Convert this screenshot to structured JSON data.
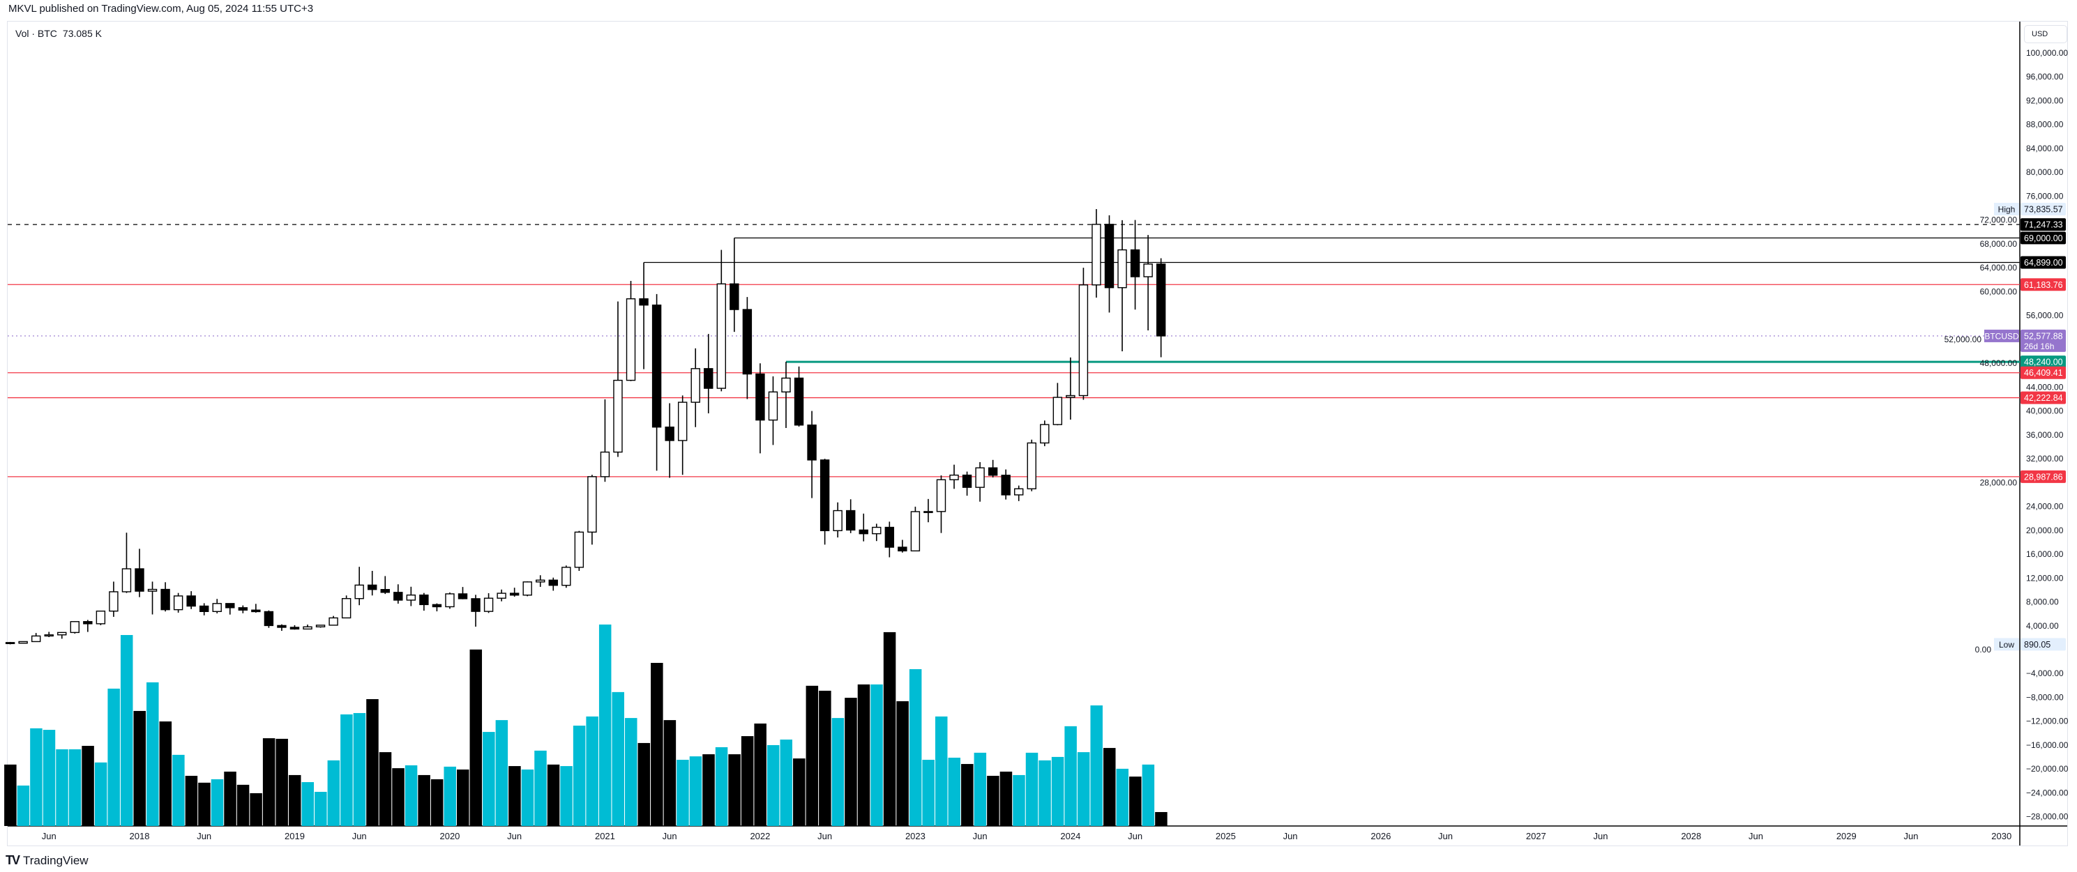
{
  "header": {
    "published": "MKVL published on TradingView.com, Aug 05, 2024 11:55 UTC+3"
  },
  "legend": {
    "label": "Vol · BTC",
    "value": "73.085 K"
  },
  "price_axis": {
    "currency": "USD"
  },
  "footer": {
    "brand": "TradingView"
  },
  "chart_data": {
    "type": "candlestick",
    "symbol": "BTCUSD",
    "interval": "monthly",
    "colors": {
      "up_body": "#ffffff",
      "down_body": "#000000",
      "wick": "#000000",
      "volume_cyan": "#00bcd4",
      "volume_black": "#000000"
    },
    "y_scale": "linear",
    "y_ticks": [
      100000,
      96000,
      92000,
      88000,
      84000,
      80000,
      76000,
      72000,
      68000,
      64000,
      60000,
      56000,
      52000,
      48000,
      44000,
      40000,
      36000,
      32000,
      28000,
      24000,
      20000,
      16000,
      12000,
      8000,
      4000,
      0,
      -4000,
      -8000,
      -12000,
      -16000,
      -20000,
      -24000,
      -28000
    ],
    "y_tick_labels": [
      "100,000.00",
      "96,000.00",
      "92,000.00",
      "88,000.00",
      "84,000.00",
      "80,000.00",
      "76,000.00",
      "72,000.00",
      "68,000.00",
      "64,000.00",
      "60,000.00",
      "56,000.00",
      "52,000.00",
      "48,000.00",
      "44,000.00",
      "40,000.00",
      "36,000.00",
      "32,000.00",
      "28,000.00",
      "24,000.00",
      "20,000.00",
      "16,000.00",
      "12,000.00",
      "8,000.00",
      "4,000.00",
      "0.00",
      "−4,000.00",
      "−8,000.00",
      "−12,000.00",
      "−16,000.00",
      "−20,000.00",
      "−24,000.00",
      "−28,000.00"
    ],
    "x_ticks": [
      {
        "label": "Jun",
        "date": "2017-06"
      },
      {
        "label": "2018",
        "date": "2018-01"
      },
      {
        "label": "Jun",
        "date": "2018-06"
      },
      {
        "label": "2019",
        "date": "2019-01"
      },
      {
        "label": "Jun",
        "date": "2019-06"
      },
      {
        "label": "2020",
        "date": "2020-01"
      },
      {
        "label": "Jun",
        "date": "2020-06"
      },
      {
        "label": "2021",
        "date": "2021-01"
      },
      {
        "label": "Jun",
        "date": "2021-06"
      },
      {
        "label": "2022",
        "date": "2022-01"
      },
      {
        "label": "Jun",
        "date": "2022-06"
      },
      {
        "label": "2023",
        "date": "2023-01"
      },
      {
        "label": "Jun",
        "date": "2023-06"
      },
      {
        "label": "2024",
        "date": "2024-01"
      },
      {
        "label": "Jun",
        "date": "2024-06"
      },
      {
        "label": "2025",
        "date": "2025-01"
      },
      {
        "label": "Jun",
        "date": "2025-06"
      },
      {
        "label": "2026",
        "date": "2026-01"
      },
      {
        "label": "Jun",
        "date": "2026-06"
      },
      {
        "label": "2027",
        "date": "2027-01"
      },
      {
        "label": "Jun",
        "date": "2027-06"
      },
      {
        "label": "2028",
        "date": "2028-01"
      },
      {
        "label": "Jun",
        "date": "2028-06"
      },
      {
        "label": "2029",
        "date": "2029-01"
      },
      {
        "label": "Jun",
        "date": "2029-06"
      },
      {
        "label": "2030",
        "date": "2030-01"
      }
    ],
    "candles": [
      [
        "2017-03",
        1190,
        1290,
        890.05,
        1080
      ],
      [
        "2017-04",
        1080,
        1350,
        1060,
        1350
      ],
      [
        "2017-05",
        1350,
        2790,
        1350,
        2290
      ],
      [
        "2017-06",
        2290,
        2980,
        2100,
        2480
      ],
      [
        "2017-07",
        2480,
        2930,
        1830,
        2875
      ],
      [
        "2017-08",
        2875,
        4750,
        2690,
        4700
      ],
      [
        "2017-09",
        4700,
        4980,
        2970,
        4340
      ],
      [
        "2017-10",
        4340,
        6470,
        4100,
        6460
      ],
      [
        "2017-11",
        6460,
        11400,
        5500,
        9700
      ],
      [
        "2017-12",
        9700,
        19600,
        9500,
        13550
      ],
      [
        "2018-01",
        13550,
        16900,
        8800,
        9800
      ],
      [
        "2018-02",
        9800,
        11400,
        5900,
        10100
      ],
      [
        "2018-03",
        10100,
        11300,
        6400,
        6700
      ],
      [
        "2018-04",
        6700,
        9500,
        6200,
        9000
      ],
      [
        "2018-05",
        9000,
        9800,
        6800,
        7300
      ],
      [
        "2018-06",
        7300,
        7780,
        5750,
        6390
      ],
      [
        "2018-07",
        6390,
        8500,
        6080,
        7730
      ],
      [
        "2018-08",
        7730,
        7770,
        5880,
        7030
      ],
      [
        "2018-09",
        7030,
        7410,
        6100,
        6630
      ],
      [
        "2018-10",
        6630,
        7670,
        6200,
        6370
      ],
      [
        "2018-11",
        6370,
        6570,
        3650,
        4040
      ],
      [
        "2018-12",
        4040,
        4240,
        3150,
        3740
      ],
      [
        "2019-01",
        3740,
        4100,
        3350,
        3460
      ],
      [
        "2019-02",
        3460,
        4200,
        3390,
        3820
      ],
      [
        "2019-03",
        3820,
        4140,
        3680,
        4100
      ],
      [
        "2019-04",
        4100,
        5650,
        4080,
        5320
      ],
      [
        "2019-05",
        5320,
        9080,
        5300,
        8560
      ],
      [
        "2019-06",
        8560,
        13880,
        7450,
        10820
      ],
      [
        "2019-07",
        10820,
        13200,
        9080,
        10080
      ],
      [
        "2019-08",
        10080,
        12330,
        9330,
        9600
      ],
      [
        "2019-09",
        9600,
        10950,
        7710,
        8300
      ],
      [
        "2019-10",
        8300,
        10540,
        7300,
        9150
      ],
      [
        "2019-11",
        9150,
        9500,
        6530,
        7550
      ],
      [
        "2019-12",
        7550,
        7750,
        6420,
        7190
      ],
      [
        "2020-01",
        7190,
        9580,
        6850,
        9350
      ],
      [
        "2020-02",
        9350,
        10500,
        8450,
        8540
      ],
      [
        "2020-03",
        8540,
        9190,
        3850,
        6410
      ],
      [
        "2020-04",
        6410,
        9460,
        6150,
        8620
      ],
      [
        "2020-05",
        8620,
        10070,
        8100,
        9450
      ],
      [
        "2020-06",
        9450,
        10380,
        8880,
        9140
      ],
      [
        "2020-07",
        9140,
        11440,
        8950,
        11350
      ],
      [
        "2020-08",
        11350,
        12470,
        10520,
        11650
      ],
      [
        "2020-09",
        11650,
        12070,
        9880,
        10780
      ],
      [
        "2020-10",
        10780,
        14100,
        10370,
        13800
      ],
      [
        "2020-11",
        13800,
        19900,
        13200,
        19700
      ],
      [
        "2020-12",
        19700,
        29300,
        17600,
        28990
      ],
      [
        "2021-01",
        28990,
        41950,
        28130,
        33110
      ],
      [
        "2021-02",
        33110,
        58350,
        32300,
        45140
      ],
      [
        "2021-03",
        45140,
        61800,
        45000,
        58800
      ],
      [
        "2021-04",
        58800,
        64899,
        47000,
        57750
      ],
      [
        "2021-05",
        57750,
        59600,
        30000,
        37300
      ],
      [
        "2021-06",
        37300,
        41300,
        28800,
        35050
      ],
      [
        "2021-07",
        35050,
        42600,
        29300,
        41460
      ],
      [
        "2021-08",
        41460,
        50500,
        37300,
        47100
      ],
      [
        "2021-09",
        47100,
        52900,
        39600,
        43800
      ],
      [
        "2021-10",
        43800,
        67000,
        43300,
        61300
      ],
      [
        "2021-11",
        61300,
        69000,
        53250,
        57000
      ],
      [
        "2021-12",
        57000,
        59100,
        42000,
        46200
      ],
      [
        "2022-01",
        46200,
        47990,
        32900,
        38480
      ],
      [
        "2022-02",
        38480,
        45800,
        34300,
        43190
      ],
      [
        "2022-03",
        43190,
        48240,
        37150,
        45510
      ],
      [
        "2022-04",
        45510,
        47450,
        37380,
        37640
      ],
      [
        "2022-05",
        37640,
        40000,
        25400,
        31790
      ],
      [
        "2022-06",
        31790,
        31990,
        17600,
        19940
      ],
      [
        "2022-07",
        19940,
        24680,
        18800,
        23300
      ],
      [
        "2022-08",
        23300,
        25200,
        19530,
        20050
      ],
      [
        "2022-09",
        20050,
        22800,
        18150,
        19430
      ],
      [
        "2022-10",
        19430,
        21100,
        18200,
        20500
      ],
      [
        "2022-11",
        20500,
        21450,
        15480,
        17170
      ],
      [
        "2022-12",
        17170,
        18400,
        16270,
        16550
      ],
      [
        "2023-01",
        16550,
        23960,
        16500,
        23130
      ],
      [
        "2023-02",
        23130,
        25250,
        21350,
        23150
      ],
      [
        "2023-03",
        23150,
        29200,
        19550,
        28480
      ],
      [
        "2023-04",
        28480,
        31000,
        26950,
        29250
      ],
      [
        "2023-05",
        29250,
        29840,
        25800,
        27200
      ],
      [
        "2023-06",
        27200,
        31430,
        24800,
        30470
      ],
      [
        "2023-07",
        30470,
        31800,
        28860,
        29230
      ],
      [
        "2023-08",
        29230,
        30200,
        25160,
        25940
      ],
      [
        "2023-09",
        25940,
        27500,
        24900,
        26960
      ],
      [
        "2023-10",
        26960,
        35200,
        26550,
        34640
      ],
      [
        "2023-11",
        34640,
        38400,
        34100,
        37720
      ],
      [
        "2023-12",
        37720,
        44700,
        37600,
        42280
      ],
      [
        "2024-01",
        42280,
        48970,
        38550,
        42580
      ],
      [
        "2024-02",
        42580,
        64000,
        41880,
        61130
      ],
      [
        "2024-03",
        61130,
        73835.57,
        59000,
        71280
      ],
      [
        "2024-04",
        71280,
        72800,
        56500,
        60670
      ],
      [
        "2024-05",
        60670,
        71980,
        50000,
        67000
      ],
      [
        "2024-06",
        67000,
        72000,
        57000,
        62500
      ],
      [
        "2024-07",
        62500,
        69500,
        53500,
        64625
      ],
      [
        "2024-08",
        64625,
        65600,
        49000,
        52577.88
      ]
    ],
    "volume_unit": "K BTC",
    "volume": [
      [
        322,
        "#000000"
      ],
      [
        212,
        "#00bcd4"
      ],
      [
        512,
        "#00bcd4"
      ],
      [
        504,
        "#00bcd4"
      ],
      [
        402,
        "#00bcd4"
      ],
      [
        402,
        "#00bcd4"
      ],
      [
        420,
        "#000000"
      ],
      [
        333,
        "#00bcd4"
      ],
      [
        720,
        "#00bcd4"
      ],
      [
        1001,
        "#00bcd4"
      ],
      [
        603,
        "#000000"
      ],
      [
        753,
        "#00bcd4"
      ],
      [
        548,
        "#000000"
      ],
      [
        373,
        "#00bcd4"
      ],
      [
        263,
        "#000000"
      ],
      [
        227,
        "#000000"
      ],
      [
        245,
        "#00bcd4"
      ],
      [
        285,
        "#000000"
      ],
      [
        216,
        "#000000"
      ],
      [
        172,
        "#000000"
      ],
      [
        460,
        "#000000"
      ],
      [
        457,
        "#000000"
      ],
      [
        267,
        "#000000"
      ],
      [
        230,
        "#00bcd4"
      ],
      [
        179,
        "#00bcd4"
      ],
      [
        344,
        "#00bcd4"
      ],
      [
        585,
        "#00bcd4"
      ],
      [
        592,
        "#00bcd4"
      ],
      [
        665,
        "#000000"
      ],
      [
        387,
        "#000000"
      ],
      [
        303,
        "#000000"
      ],
      [
        318,
        "#00bcd4"
      ],
      [
        267,
        "#000000"
      ],
      [
        245,
        "#000000"
      ],
      [
        311,
        "#00bcd4"
      ],
      [
        296,
        "#000000"
      ],
      [
        925,
        "#000000"
      ],
      [
        493,
        "#00bcd4"
      ],
      [
        555,
        "#00bcd4"
      ],
      [
        314,
        "#000000"
      ],
      [
        296,
        "#00bcd4"
      ],
      [
        395,
        "#00bcd4"
      ],
      [
        322,
        "#000000"
      ],
      [
        314,
        "#00bcd4"
      ],
      [
        526,
        "#00bcd4"
      ],
      [
        574,
        "#00bcd4"
      ],
      [
        1056,
        "#00bcd4"
      ],
      [
        702,
        "#00bcd4"
      ],
      [
        566,
        "#00bcd4"
      ],
      [
        435,
        "#000000"
      ],
      [
        855,
        "#000000"
      ],
      [
        555,
        "#000000"
      ],
      [
        347,
        "#00bcd4"
      ],
      [
        365,
        "#00bcd4"
      ],
      [
        376,
        "#000000"
      ],
      [
        413,
        "#00bcd4"
      ],
      [
        376,
        "#000000"
      ],
      [
        471,
        "#000000"
      ],
      [
        537,
        "#000000"
      ],
      [
        424,
        "#00bcd4"
      ],
      [
        453,
        "#00bcd4"
      ],
      [
        354,
        "#000000"
      ],
      [
        735,
        "#000000"
      ],
      [
        709,
        "#000000"
      ],
      [
        566,
        "#00bcd4"
      ],
      [
        672,
        "#000000"
      ],
      [
        742,
        "#000000"
      ],
      [
        742,
        "#00bcd4"
      ],
      [
        1016,
        "#000000"
      ],
      [
        654,
        "#000000"
      ],
      [
        822,
        "#00bcd4"
      ],
      [
        347,
        "#00bcd4"
      ],
      [
        574,
        "#00bcd4"
      ],
      [
        358,
        "#00bcd4"
      ],
      [
        325,
        "#000000"
      ],
      [
        384,
        "#00bcd4"
      ],
      [
        263,
        "#000000"
      ],
      [
        285,
        "#000000"
      ],
      [
        267,
        "#00bcd4"
      ],
      [
        384,
        "#00bcd4"
      ],
      [
        344,
        "#00bcd4"
      ],
      [
        362,
        "#00bcd4"
      ],
      [
        523,
        "#00bcd4"
      ],
      [
        387,
        "#00bcd4"
      ],
      [
        632,
        "#00bcd4"
      ],
      [
        409,
        "#000000"
      ],
      [
        300,
        "#00bcd4"
      ],
      [
        259,
        "#000000"
      ],
      [
        322,
        "#00bcd4"
      ],
      [
        73.085,
        "#000000"
      ]
    ],
    "levels": [
      {
        "price": 71247.33,
        "label": "71,247.33",
        "color": "#000000",
        "style": "dashed",
        "from": null
      },
      {
        "price": 69000,
        "label": "69,000.00",
        "color": "#000000",
        "style": "solid",
        "from": "2021-11"
      },
      {
        "price": 64899,
        "label": "64,899.00",
        "color": "#000000",
        "style": "solid",
        "from": "2021-04"
      },
      {
        "price": 61183.76,
        "label": "61,183.76",
        "color": "#f23645",
        "style": "solid",
        "from": null
      },
      {
        "price": 48240,
        "label": "48,240.00",
        "color": "#089981",
        "style": "thick",
        "from": "2022-03"
      },
      {
        "price": 46409.41,
        "label": "46,409.41",
        "color": "#f23645",
        "style": "solid",
        "from": null
      },
      {
        "price": 42222.84,
        "label": "42,222.84",
        "color": "#f23645",
        "style": "solid",
        "from": null
      },
      {
        "price": 28987.86,
        "label": "28,987.86",
        "color": "#f23645",
        "style": "solid",
        "from": null
      }
    ],
    "last_price": {
      "price": 52577.88,
      "label": "52,577.88",
      "countdown": "26d 16h",
      "symbol_label": "BTCUSD",
      "color": "#9575cd"
    },
    "high": {
      "tag": "High",
      "price": 73835.57,
      "label": "73,835.57"
    },
    "low": {
      "tag": "Low",
      "price": 890.05,
      "label": "890.05"
    }
  }
}
